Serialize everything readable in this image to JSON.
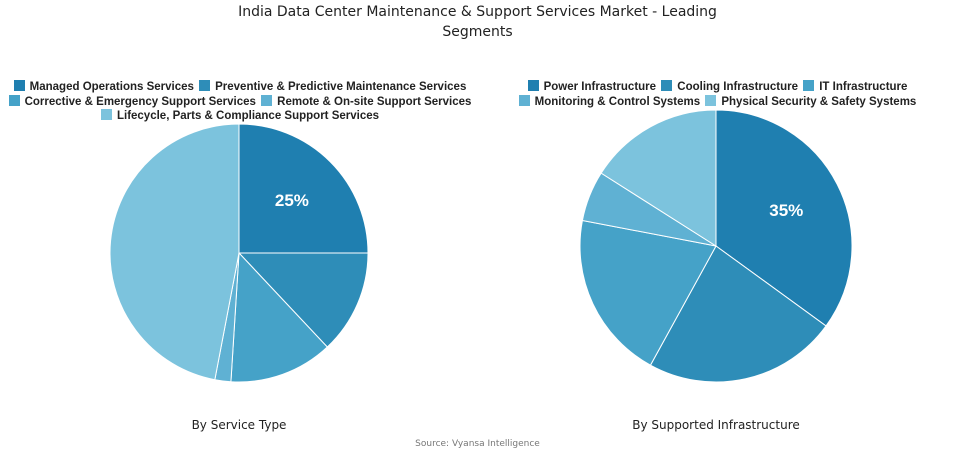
{
  "title": "India Data Center Maintenance & Support Services Market - Leading Segments",
  "title_lines": [
    "India Data Center Maintenance & Support Services Market - Leading",
    "Segments"
  ],
  "source": "Source: Vyansa Intelligence",
  "colors": [
    "#1f7fb0",
    "#2e8db8",
    "#45a2c8",
    "#5fb1d3",
    "#7cc3dd"
  ],
  "chart_data": [
    {
      "type": "pie",
      "title": "By Service Type",
      "categories": [
        "Managed Operations Services",
        "Preventive & Predictive Maintenance Services",
        "Corrective & Emergency Support Services",
        "Remote & On-site Support Services",
        "Lifecycle, Parts & Compliance Support Services"
      ],
      "values": [
        25,
        13,
        13,
        2,
        47
      ],
      "labels_shown": [
        "25%",
        "",
        "",
        "",
        ""
      ],
      "legend_position": "top",
      "center": [
        239,
        253
      ],
      "radius": 129
    },
    {
      "type": "pie",
      "title": "By Supported Infrastructure",
      "categories": [
        "Power Infrastructure",
        "Cooling Infrastructure",
        "IT Infrastructure",
        "Monitoring & Control Systems",
        "Physical Security & Safety Systems"
      ],
      "values": [
        35,
        23,
        20,
        6,
        16
      ],
      "labels_shown": [
        "35%",
        "",
        "",
        "",
        ""
      ],
      "legend_position": "top",
      "center": [
        716,
        246
      ],
      "radius": 136
    }
  ]
}
